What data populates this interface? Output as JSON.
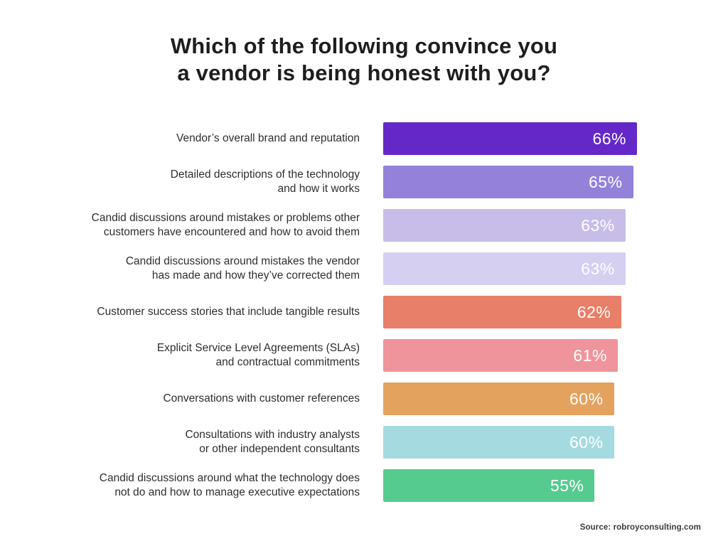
{
  "title": "Which of the following convince you\na vendor is being honest with you?",
  "source": "Source: robroyconsulting.com",
  "colors": {
    "background": "#ffffff",
    "title_text": "#1e1e1e",
    "label_text": "#2e2e2e",
    "value_label_text": "#ffffff",
    "source_text": "#3b3b3b"
  },
  "chart_data": {
    "type": "bar",
    "orientation": "horizontal",
    "title": "Which of the following convince you a vendor is being honest with you?",
    "xlabel": "",
    "ylabel": "",
    "xlim": [
      0,
      66
    ],
    "grid": false,
    "legend": "none",
    "value_suffix": "%",
    "categories": [
      "Vendor’s overall brand and reputation",
      "Detailed descriptions of the technology\nand how it works",
      "Candid discussions around mistakes or problems other\ncustomers have encountered and how to avoid them",
      "Candid discussions around mistakes the vendor\nhas made and how they’ve corrected them",
      "Customer success stories that include tangible results",
      "Explicit Service Level Agreements (SLAs)\nand contractual commitments",
      "Conversations with customer references",
      "Consultations with industry analysts\nor other independent consultants",
      "Candid discussions around what the technology does\nnot do and how to manage executive expectations"
    ],
    "values": [
      66,
      65,
      63,
      63,
      62,
      61,
      60,
      60,
      55
    ],
    "value_labels": [
      "66%",
      "65%",
      "63%",
      "63%",
      "62%",
      "61%",
      "60%",
      "60%",
      "55%"
    ],
    "bar_colors": [
      "#6428c8",
      "#9381da",
      "#c8bde8",
      "#d5cff2",
      "#e87f68",
      "#f0949b",
      "#e4a25f",
      "#a6dae1",
      "#55cb90"
    ]
  }
}
